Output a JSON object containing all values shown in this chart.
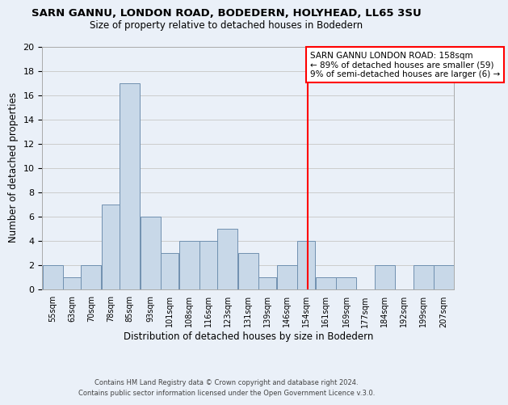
{
  "title": "SARN GANNU, LONDON ROAD, BODEDERN, HOLYHEAD, LL65 3SU",
  "subtitle": "Size of property relative to detached houses in Bodedern",
  "xlabel": "Distribution of detached houses by size in Bodedern",
  "ylabel": "Number of detached properties",
  "bin_labels": [
    "55sqm",
    "63sqm",
    "70sqm",
    "78sqm",
    "85sqm",
    "93sqm",
    "101sqm",
    "108sqm",
    "116sqm",
    "123sqm",
    "131sqm",
    "139sqm",
    "146sqm",
    "154sqm",
    "161sqm",
    "169sqm",
    "177sqm",
    "184sqm",
    "192sqm",
    "199sqm",
    "207sqm"
  ],
  "bar_heights": [
    2,
    1,
    2,
    7,
    17,
    6,
    3,
    4,
    4,
    5,
    3,
    1,
    2,
    4,
    1,
    1,
    0,
    2,
    0,
    2,
    2
  ],
  "bar_color": "#c8d8e8",
  "bar_edge_color": "#7090b0",
  "grid_color": "#cccccc",
  "background_color": "#eaf0f8",
  "vline_x": 158,
  "vline_color": "red",
  "annotation_title": "SARN GANNU LONDON ROAD: 158sqm",
  "annotation_line1": "← 89% of detached houses are smaller (59)",
  "annotation_line2": "9% of semi-detached houses are larger (6) →",
  "annotation_box_color": "white",
  "annotation_box_edge": "red",
  "ylim": [
    0,
    20
  ],
  "yticks": [
    0,
    2,
    4,
    6,
    8,
    10,
    12,
    14,
    16,
    18,
    20
  ],
  "footer1": "Contains HM Land Registry data © Crown copyright and database right 2024.",
  "footer2": "Contains public sector information licensed under the Open Government Licence v.3.0.",
  "bin_edges": [
    55,
    63,
    70,
    78,
    85,
    93,
    101,
    108,
    116,
    123,
    131,
    139,
    146,
    154,
    161,
    169,
    177,
    184,
    192,
    199,
    207,
    215
  ]
}
